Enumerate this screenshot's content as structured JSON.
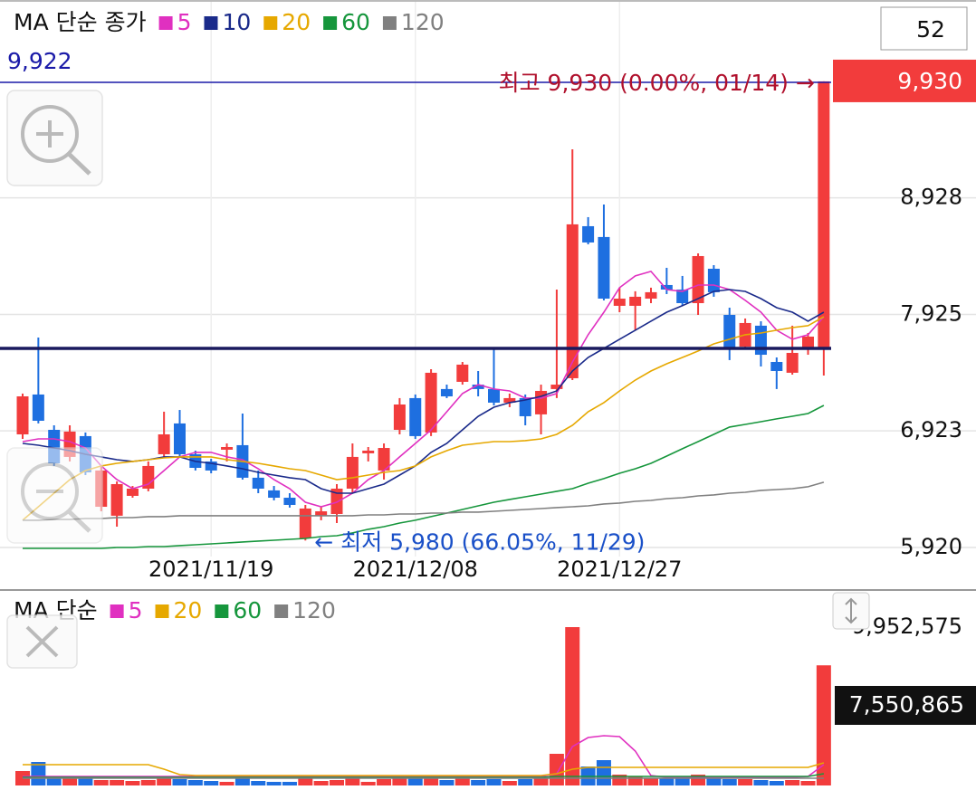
{
  "chart_data": [
    {
      "type": "candlestick",
      "title": "MA 단순 종가",
      "count": 52,
      "categories": [
        null,
        null,
        null,
        null,
        null,
        null,
        null,
        null,
        null,
        null,
        null,
        null,
        "2021/11/19",
        null,
        null,
        null,
        null,
        null,
        null,
        null,
        null,
        null,
        null,
        null,
        null,
        "2021/12/08",
        null,
        null,
        null,
        null,
        null,
        null,
        null,
        null,
        null,
        null,
        null,
        null,
        "2021/12/27",
        null,
        null,
        null,
        null,
        null,
        null,
        null,
        null,
        null,
        null,
        null,
        null,
        null
      ],
      "open": [
        6893,
        7236,
        6932,
        6699,
        6878,
        6270,
        6193,
        6364,
        6426,
        6722,
        6987,
        6722,
        6660,
        6761,
        6800,
        6520,
        6411,
        6348,
        5998,
        6193,
        6208,
        6426,
        6730,
        6582,
        6932,
        7205,
        6909,
        7283,
        7345,
        7321,
        7283,
        7166,
        7205,
        7065,
        7283,
        7376,
        8684,
        8591,
        7999,
        7999,
        8061,
        8178,
        8139,
        8022,
        8318,
        7921,
        7648,
        7828,
        7516,
        7423,
        7633,
        7633
      ],
      "high": [
        7244,
        7726,
        6971,
        6971,
        6909,
        6621,
        6488,
        6449,
        6660,
        7088,
        7103,
        6753,
        6683,
        6815,
        7072,
        6582,
        6449,
        6387,
        6286,
        6270,
        6465,
        6815,
        6784,
        6815,
        7205,
        7236,
        7454,
        7321,
        7516,
        7438,
        7633,
        7244,
        7236,
        7321,
        8139,
        9346,
        8762,
        8871,
        8155,
        8124,
        8155,
        8326,
        8256,
        8450,
        8349,
        7983,
        7890,
        7866,
        7555,
        7828,
        7765,
        9930
      ],
      "low": [
        6854,
        6987,
        6621,
        6660,
        6543,
        6231,
        6099,
        6348,
        6403,
        6699,
        6699,
        6582,
        6558,
        6660,
        6504,
        6387,
        6325,
        6263,
        5980,
        6154,
        6130,
        6387,
        6660,
        6504,
        6893,
        6854,
        6878,
        7205,
        7321,
        7220,
        7142,
        7127,
        6971,
        6893,
        7205,
        7360,
        8528,
        8045,
        7944,
        7789,
        8022,
        8100,
        7999,
        7921,
        8077,
        7532,
        7625,
        7477,
        7283,
        7407,
        7578,
        7399
      ],
      "close": [
        7220,
        7010,
        6644,
        6917,
        6566,
        6582,
        6465,
        6426,
        6621,
        6893,
        6722,
        6605,
        6582,
        6784,
        6520,
        6426,
        6348,
        6286,
        6255,
        6231,
        6426,
        6699,
        6753,
        6776,
        7150,
        6878,
        7423,
        7220,
        7493,
        7283,
        7166,
        7205,
        7049,
        7267,
        7321,
        8700,
        8544,
        8061,
        8061,
        8077,
        8116,
        8139,
        8022,
        8427,
        8116,
        7633,
        7851,
        7578,
        7438,
        7594,
        7734,
        9930
      ],
      "close_labels": [
        null,
        null,
        null,
        null,
        null,
        null,
        null,
        null,
        null,
        null,
        null,
        null,
        null,
        null,
        null,
        null,
        null,
        null,
        null,
        null,
        null,
        null,
        null,
        null,
        null,
        null,
        null,
        null,
        null,
        null,
        null,
        null,
        null,
        null,
        null,
        null,
        null,
        null,
        null,
        null,
        null,
        null,
        null,
        null,
        null,
        null,
        null,
        null,
        null,
        null,
        null,
        "9,930"
      ],
      "up_color": "#f23c3c",
      "down_color": "#1e6fe0",
      "series": [
        {
          "name": "5",
          "color": "#e030c0",
          "values": [
            6831,
            6854,
            6854,
            6831,
            6776,
            6621,
            6504,
            6426,
            6465,
            6582,
            6699,
            6738,
            6738,
            6699,
            6675,
            6597,
            6504,
            6426,
            6309,
            6270,
            6309,
            6387,
            6504,
            6582,
            6699,
            6815,
            6932,
            7088,
            7244,
            7321,
            7283,
            7267,
            7205,
            7205,
            7244,
            7516,
            7750,
            7944,
            8155,
            8256,
            8295,
            8139,
            8123,
            8178,
            8178,
            8139,
            8046,
            7944,
            7789,
            7711,
            7750,
            7905
          ]
        },
        {
          "name": "10",
          "color": "#1a2a8a",
          "values": [
            6815,
            6800,
            6776,
            6753,
            6722,
            6699,
            6675,
            6660,
            6675,
            6699,
            6699,
            6660,
            6644,
            6621,
            6597,
            6566,
            6543,
            6520,
            6504,
            6426,
            6387,
            6387,
            6426,
            6465,
            6543,
            6621,
            6738,
            6815,
            6932,
            7049,
            7127,
            7166,
            7189,
            7220,
            7267,
            7438,
            7555,
            7633,
            7711,
            7789,
            7867,
            7944,
            8000,
            8061,
            8123,
            8139,
            8123,
            8061,
            7983,
            7944,
            7867,
            7944
          ]
        },
        {
          "name": "20",
          "color": "#e6a800",
          "values": [
            6154,
            6270,
            6387,
            6504,
            6582,
            6621,
            6644,
            6660,
            6675,
            6691,
            6699,
            6699,
            6699,
            6675,
            6660,
            6644,
            6621,
            6597,
            6582,
            6543,
            6504,
            6520,
            6543,
            6566,
            6582,
            6621,
            6699,
            6753,
            6800,
            6815,
            6831,
            6831,
            6839,
            6854,
            6893,
            6971,
            7088,
            7166,
            7267,
            7360,
            7438,
            7500,
            7555,
            7610,
            7672,
            7711,
            7750,
            7765,
            7789,
            7812,
            7828,
            7905
          ]
        },
        {
          "name": "60",
          "color": "#16963c",
          "values": [
            5912,
            5912,
            5912,
            5912,
            5912,
            5912,
            5920,
            5920,
            5928,
            5928,
            5936,
            5943,
            5951,
            5959,
            5967,
            5975,
            5982,
            5990,
            5998,
            6013,
            6021,
            6045,
            6076,
            6099,
            6130,
            6154,
            6185,
            6216,
            6247,
            6278,
            6309,
            6333,
            6356,
            6379,
            6403,
            6426,
            6473,
            6512,
            6558,
            6597,
            6644,
            6706,
            6769,
            6831,
            6893,
            6956,
            6979,
            7002,
            7026,
            7049,
            7072,
            7142
          ]
        },
        {
          "name": "120",
          "color": "#808080",
          "values": [
            6154,
            6154,
            6161,
            6161,
            6169,
            6169,
            6177,
            6177,
            6185,
            6185,
            6193,
            6193,
            6193,
            6193,
            6193,
            6193,
            6193,
            6193,
            6193,
            6193,
            6193,
            6193,
            6200,
            6200,
            6208,
            6208,
            6216,
            6216,
            6224,
            6224,
            6231,
            6239,
            6247,
            6255,
            6263,
            6270,
            6278,
            6294,
            6302,
            6317,
            6325,
            6340,
            6348,
            6364,
            6372,
            6387,
            6395,
            6411,
            6418,
            6426,
            6442,
            6481
          ]
        }
      ],
      "ylim": [
        5842,
        10163
      ],
      "yticks": [
        {
          "value": 5920,
          "label": "5,920"
        },
        {
          "value": 6923,
          "label": "6,923"
        },
        {
          "value": 7925,
          "label": "7,925"
        },
        {
          "value": 8928,
          "label": "8,928"
        }
      ],
      "reference_lines": [
        {
          "value": 9922,
          "label": "9,922",
          "color": "#1a1aa8"
        },
        {
          "value": 7633,
          "color": "#1a1a5e"
        }
      ],
      "annotations": [
        {
          "text": "최고 9,930 (0.00%, 01/14) →",
          "color": "#b0102c"
        },
        {
          "text": "← 최저 5,980 (66.05%, 11/29)",
          "color": "#1a50c8"
        }
      ],
      "grid": true
    },
    {
      "type": "bar",
      "title": "MA 단순",
      "values": [
        909952,
        1478672,
        568720,
        454976,
        454976,
        341232,
        341232,
        284360,
        341232,
        454976,
        398104,
        341232,
        284360,
        227488,
        454976,
        284360,
        227488,
        227488,
        568720,
        284360,
        341232,
        454976,
        227488,
        398104,
        568720,
        625592,
        568720,
        341232,
        454976,
        341232,
        398104,
        284360,
        398104,
        454976,
        1990520,
        9952575,
        1194312,
        1592416,
        682464,
        568720,
        454976,
        454976,
        568720,
        682464,
        454976,
        398104,
        398104,
        341232,
        284360,
        341232,
        284360,
        7550865
      ],
      "value_labels": [
        null,
        null,
        null,
        null,
        null,
        null,
        null,
        null,
        null,
        null,
        null,
        null,
        null,
        null,
        null,
        null,
        null,
        null,
        null,
        null,
        null,
        null,
        null,
        null,
        null,
        null,
        null,
        null,
        null,
        null,
        null,
        null,
        null,
        null,
        null,
        null,
        null,
        null,
        null,
        null,
        null,
        null,
        null,
        null,
        null,
        null,
        null,
        null,
        null,
        null,
        null,
        "7,550,865"
      ],
      "series": [
        {
          "name": "5",
          "color": "#e030c0",
          "values": [
            568720,
            568720,
            568720,
            568720,
            568720,
            568720,
            568720,
            568720,
            568720,
            568720,
            568720,
            568720,
            568720,
            568720,
            568720,
            568720,
            568720,
            568720,
            568720,
            568720,
            568720,
            568720,
            568720,
            568720,
            568720,
            568720,
            568720,
            568720,
            568720,
            568720,
            568720,
            568720,
            568720,
            568720,
            739336,
            2445496,
            3014216,
            3127960,
            3071088,
            2161136,
            625592,
            511848,
            511848,
            511848,
            511848,
            511848,
            511848,
            511848,
            511848,
            511848,
            568720,
            1308056
          ]
        },
        {
          "name": "20",
          "color": "#e6a800",
          "values": [
            1308056,
            1308056,
            1308056,
            1308056,
            1308056,
            1308056,
            1308056,
            1308056,
            1308056,
            1023696,
            682464,
            625592,
            625592,
            625592,
            625592,
            625592,
            625592,
            625592,
            625592,
            625592,
            625592,
            625592,
            625592,
            625592,
            625592,
            625592,
            625592,
            625592,
            625592,
            625592,
            625592,
            625592,
            625592,
            625592,
            739336,
            1023696,
            1137440,
            1137440,
            1137440,
            1137440,
            1137440,
            1137440,
            1137440,
            1137440,
            1137440,
            1137440,
            1137440,
            1137440,
            1137440,
            1137440,
            1137440,
            1421800
          ]
        },
        {
          "name": "60",
          "color": "#16963c",
          "values": [
            511848,
            511848,
            511848,
            511848,
            511848,
            511848,
            511848,
            511848,
            511848,
            511848,
            511848,
            511848,
            511848,
            511848,
            511848,
            511848,
            511848,
            511848,
            511848,
            511848,
            511848,
            511848,
            511848,
            511848,
            511848,
            511848,
            511848,
            511848,
            511848,
            511848,
            511848,
            511848,
            511848,
            511848,
            568720,
            568720,
            568720,
            568720,
            568720,
            568720,
            568720,
            568720,
            568720,
            568720,
            568720,
            568720,
            568720,
            568720,
            568720,
            568720,
            568720,
            739336
          ]
        },
        {
          "name": "120",
          "color": "#808080",
          "values": [
            454976,
            454976,
            454976,
            454976,
            454976,
            454976,
            454976,
            454976,
            454976,
            454976,
            454976,
            454976,
            454976,
            454976,
            454976,
            454976,
            454976,
            454976,
            454976,
            454976,
            454976,
            454976,
            454976,
            454976,
            454976,
            454976,
            454976,
            454976,
            454976,
            454976,
            454976,
            454976,
            454976,
            454976,
            454976,
            454976,
            454976,
            454976,
            454976,
            454976,
            454976,
            454976,
            454976,
            454976,
            454976,
            454976,
            454976,
            454976,
            454976,
            454976,
            454976,
            454976
          ]
        }
      ],
      "ylim": [
        0,
        11829376
      ],
      "yticks": [
        {
          "value": 9952575,
          "label": "9,952,575"
        }
      ]
    }
  ]
}
